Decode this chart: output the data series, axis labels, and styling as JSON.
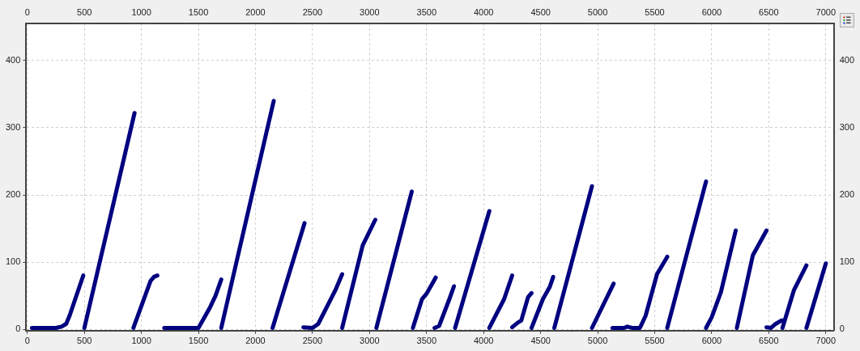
{
  "chart_data": {
    "type": "line",
    "x": [
      40,
      250,
      300,
      340,
      370,
      420,
      490,
      null,
      500,
      940,
      null,
      930,
      1080,
      1110,
      1140,
      null,
      1200,
      1500,
      1600,
      1650,
      1700,
      null,
      1700,
      2160,
      null,
      2150,
      2430,
      null,
      2420,
      2500,
      2550,
      2700,
      2760,
      null,
      2760,
      2940,
      3050,
      null,
      3060,
      3370,
      null,
      3380,
      3460,
      3500,
      3580,
      null,
      3570,
      3610,
      3700,
      3740,
      null,
      3750,
      4050,
      null,
      4050,
      4180,
      4250,
      null,
      4250,
      4300,
      4330,
      4390,
      4420,
      null,
      4420,
      4520,
      4580,
      4610,
      null,
      4620,
      4950,
      null,
      4950,
      5140,
      null,
      5130,
      5230,
      5260,
      5300,
      5370,
      5420,
      5520,
      5610,
      null,
      5610,
      5950,
      null,
      5950,
      6000,
      6080,
      6210,
      null,
      6220,
      6360,
      6480,
      null,
      6480,
      6520,
      6560,
      6610,
      6630,
      null,
      6620,
      6720,
      6830,
      null,
      6830,
      7000
    ],
    "series": [
      {
        "color": "#000080",
        "values": [
          2,
          2,
          4,
          8,
          20,
          45,
          80,
          null,
          2,
          322,
          null,
          2,
          72,
          78,
          80,
          null,
          2,
          2,
          32,
          50,
          74,
          null,
          2,
          340,
          null,
          2,
          158,
          null,
          3,
          2,
          8,
          58,
          82,
          null,
          2,
          125,
          163,
          null,
          2,
          205,
          null,
          2,
          45,
          53,
          77,
          null,
          2,
          5,
          45,
          64,
          null,
          2,
          176,
          null,
          2,
          45,
          80,
          null,
          3,
          10,
          13,
          48,
          54,
          null,
          2,
          45,
          63,
          78,
          null,
          2,
          213,
          null,
          2,
          68,
          null,
          2,
          2,
          4,
          2,
          2,
          20,
          82,
          108,
          null,
          2,
          220,
          null,
          2,
          18,
          55,
          147,
          null,
          2,
          110,
          147,
          null,
          3,
          2,
          8,
          13,
          13,
          null,
          2,
          58,
          95,
          null,
          2,
          98
        ]
      }
    ],
    "xlim": [
      -10,
      7070
    ],
    "xticks": [
      0,
      500,
      1000,
      1500,
      2000,
      2500,
      3000,
      3500,
      4000,
      4500,
      5000,
      5500,
      6000,
      6500,
      7000
    ],
    "x2lim": [
      -10,
      7070
    ],
    "x2ticks": [
      0,
      500,
      1000,
      1500,
      2000,
      2500,
      3000,
      3500,
      4000,
      4500,
      5000,
      5500,
      6000,
      6500,
      7000
    ],
    "ylim": [
      -2,
      455
    ],
    "yticks": [
      0,
      100,
      200,
      300,
      400
    ],
    "y2lim": [
      -2,
      455
    ],
    "y2ticks": [
      0,
      100,
      200,
      300,
      400
    ],
    "grid": true,
    "legend": false,
    "marker": "none",
    "line_style": "solid"
  }
}
